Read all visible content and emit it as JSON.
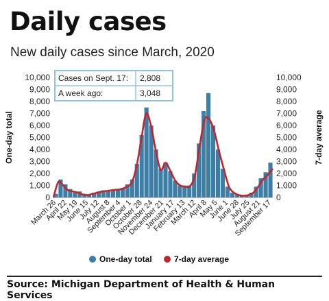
{
  "header": {
    "title": "Daily cases",
    "subtitle": "New daily cases since March, 2020"
  },
  "source": "Source:  Michigan Department of Health & Human Services",
  "info_box": {
    "rows": [
      {
        "label": "Cases on Sept. 17:",
        "value": "2,808"
      },
      {
        "label": "A week ago:",
        "value": "3,048"
      }
    ]
  },
  "colors": {
    "bars": "#3c7ea6",
    "line": "#c0262e",
    "box_border": "#8fc3df"
  },
  "chart_data": {
    "type": "bar",
    "title": "",
    "xlabel": "",
    "ylabel": "One-day total",
    "y2label": "7-day average",
    "ylim": [
      0,
      10000
    ],
    "y2lim": [
      0,
      10000
    ],
    "yticks": [
      0,
      1000,
      2000,
      3000,
      4000,
      5000,
      6000,
      7000,
      8000,
      9000,
      10000
    ],
    "ytick_labels": [
      "0",
      "1,000",
      "2,000",
      "3,000",
      "4,000",
      "5,000",
      "6,000",
      "7,000",
      "8,000",
      "9,000",
      "10,000"
    ],
    "x_tick_labels": [
      "March 26",
      "April 22",
      "May 19",
      "June 15",
      "July 12",
      "August 8",
      "September 4",
      "October 1",
      "October 28",
      "November 24",
      "December 21",
      "January 17",
      "February 13",
      "March 12",
      "April 8",
      "May 5",
      "June 1",
      "June 28",
      "July 25",
      "August 21",
      "September 17"
    ],
    "legend_position": "bottom",
    "series": [
      {
        "name": "One-day total",
        "kind": "bar",
        "values": [
          300,
          1500,
          1100,
          700,
          400,
          500,
          300,
          200,
          400,
          500,
          600,
          600,
          600,
          700,
          800,
          1100,
          1500,
          2800,
          5200,
          7500,
          6000,
          4000,
          2400,
          2900,
          2200,
          1400,
          1000,
          1000,
          1000,
          2000,
          4500,
          7200,
          8700,
          6000,
          4000,
          2400,
          900,
          400,
          200,
          150,
          200,
          400,
          900,
          1600,
          2100,
          2900
        ]
      },
      {
        "name": "7-day average",
        "kind": "line",
        "values": [
          0,
          1300,
          1000,
          600,
          500,
          400,
          250,
          200,
          300,
          400,
          500,
          550,
          600,
          650,
          700,
          900,
          1200,
          2500,
          4800,
          7000,
          6000,
          3900,
          2300,
          2900,
          2200,
          1400,
          1000,
          900,
          950,
          1800,
          4300,
          6500,
          6500,
          5500,
          3800,
          2300,
          900,
          400,
          200,
          150,
          200,
          400,
          900,
          1500,
          1900,
          2400
        ]
      }
    ],
    "annotations": [
      "Cases on Sept. 17: 2,808",
      "A week ago: 3,048"
    ]
  }
}
